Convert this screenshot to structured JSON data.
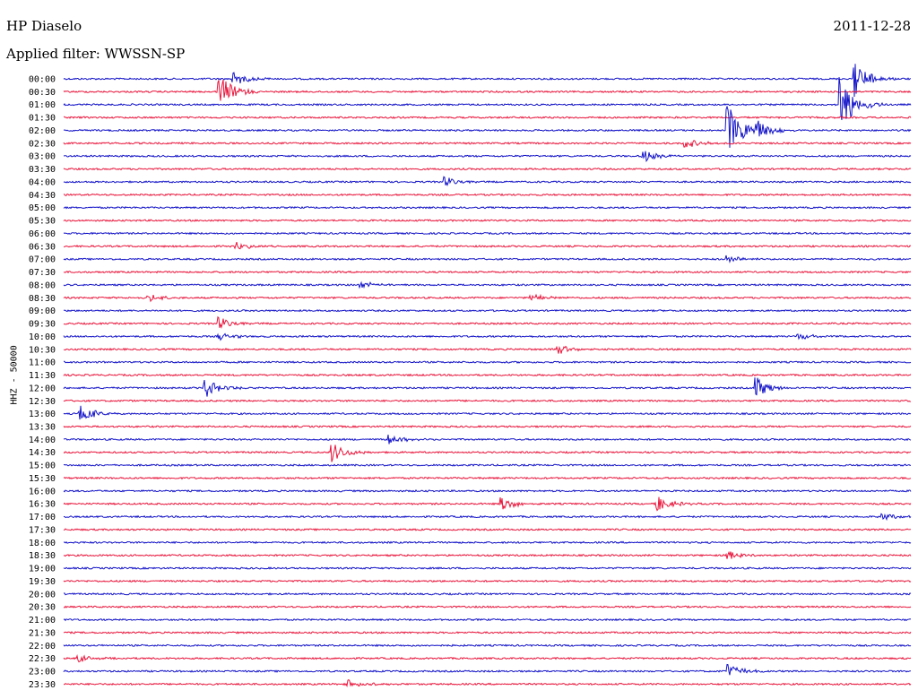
{
  "header": {
    "station": "HP Diaselo",
    "date": "2011-12-28",
    "filter_label": "Applied filter: WWSSN-SP"
  },
  "channel_label": "HHZ - 50000",
  "colors": {
    "odd_trace": "#1414c8",
    "even_trace": "#e8163c"
  },
  "chart_data": {
    "type": "line",
    "title": "",
    "xlabel": "",
    "ylabel": "HHZ - 50000",
    "rows": [
      "00:00",
      "00:30",
      "01:00",
      "01:30",
      "02:00",
      "02:30",
      "03:00",
      "03:30",
      "04:00",
      "04:30",
      "05:00",
      "05:30",
      "06:00",
      "06:30",
      "07:00",
      "07:30",
      "08:00",
      "08:30",
      "09:00",
      "09:30",
      "10:00",
      "10:30",
      "11:00",
      "11:30",
      "12:00",
      "12:30",
      "13:00",
      "13:30",
      "14:00",
      "14:30",
      "15:00",
      "15:30",
      "16:00",
      "16:30",
      "17:00",
      "17:30",
      "18:00",
      "18:30",
      "19:00",
      "19:30",
      "20:00",
      "20:30",
      "21:00",
      "21:30",
      "22:00",
      "22:30",
      "23:00",
      "23:30"
    ],
    "row_minutes": 30,
    "color_cycle": [
      "#1414c8",
      "#e8163c"
    ],
    "events": [
      {
        "row": "00:00",
        "minute": 6,
        "amp": 0.6
      },
      {
        "row": "00:00",
        "minute": 28,
        "amp": 1.5
      },
      {
        "row": "00:30",
        "minute": 5.5,
        "amp": 1.4
      },
      {
        "row": "01:00",
        "minute": 27.5,
        "amp": 2.5
      },
      {
        "row": "02:00",
        "minute": 23.5,
        "amp": 2.2
      },
      {
        "row": "02:00",
        "minute": 24.5,
        "amp": 0.9
      },
      {
        "row": "02:30",
        "minute": 22,
        "amp": 0.4
      },
      {
        "row": "03:00",
        "minute": 20.5,
        "amp": 0.5
      },
      {
        "row": "04:00",
        "minute": 13.5,
        "amp": 0.4
      },
      {
        "row": "06:30",
        "minute": 6,
        "amp": 0.4
      },
      {
        "row": "07:00",
        "minute": 23.5,
        "amp": 0.3
      },
      {
        "row": "08:00",
        "minute": 10.5,
        "amp": 0.3
      },
      {
        "row": "08:30",
        "minute": 3,
        "amp": 0.3
      },
      {
        "row": "08:30",
        "minute": 16.5,
        "amp": 0.3
      },
      {
        "row": "09:30",
        "minute": 5.5,
        "amp": 0.5
      },
      {
        "row": "10:00",
        "minute": 5.5,
        "amp": 0.3
      },
      {
        "row": "10:00",
        "minute": 26,
        "amp": 0.3
      },
      {
        "row": "10:30",
        "minute": 17.5,
        "amp": 0.4
      },
      {
        "row": "12:00",
        "minute": 5,
        "amp": 0.8
      },
      {
        "row": "12:00",
        "minute": 24.5,
        "amp": 0.9
      },
      {
        "row": "13:00",
        "minute": 0.5,
        "amp": 0.9
      },
      {
        "row": "14:00",
        "minute": 11.5,
        "amp": 0.4
      },
      {
        "row": "14:30",
        "minute": 9.5,
        "amp": 0.8
      },
      {
        "row": "16:30",
        "minute": 15.5,
        "amp": 0.6
      },
      {
        "row": "16:30",
        "minute": 21,
        "amp": 0.6
      },
      {
        "row": "17:00",
        "minute": 29,
        "amp": 0.3
      },
      {
        "row": "18:30",
        "minute": 23.5,
        "amp": 0.4
      },
      {
        "row": "22:30",
        "minute": 0.5,
        "amp": 0.3
      },
      {
        "row": "23:00",
        "minute": 23.5,
        "amp": 0.6
      },
      {
        "row": "23:30",
        "minute": 10,
        "amp": 0.5
      }
    ]
  }
}
